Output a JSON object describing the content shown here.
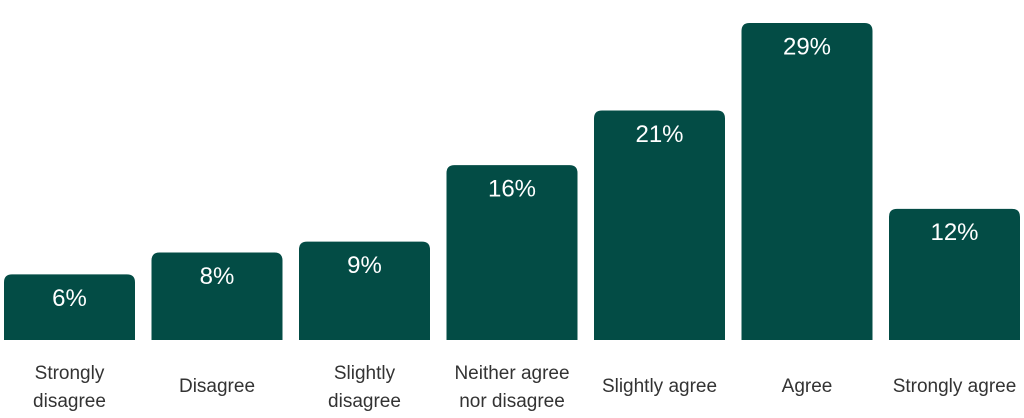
{
  "chart_data": {
    "type": "bar",
    "categories": [
      "Strongly disagree",
      "Disagree",
      "Slightly disagree",
      "Neither agree nor disagree",
      "Slightly agree",
      "Agree",
      "Strongly agree"
    ],
    "values": [
      6,
      8,
      9,
      16,
      21,
      29,
      12
    ],
    "value_labels": [
      "6%",
      "8%",
      "9%",
      "16%",
      "21%",
      "29%",
      "12%"
    ],
    "color": "#034c45"
  }
}
